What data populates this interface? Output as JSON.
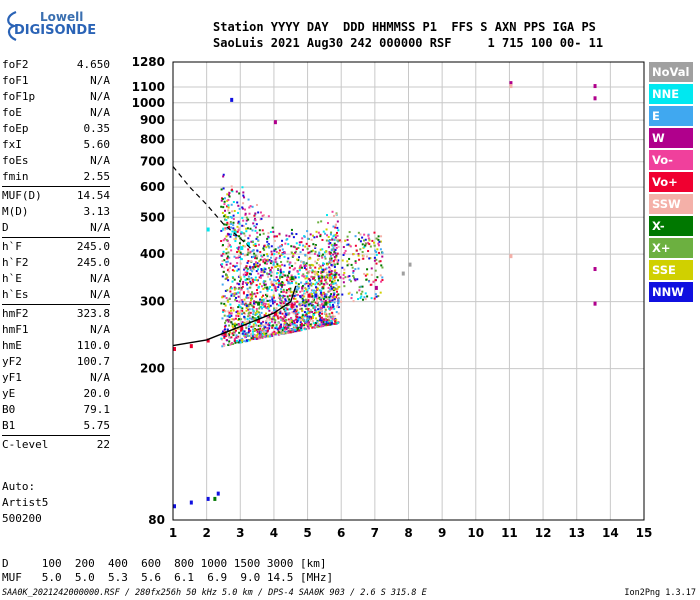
{
  "logo": {
    "line1": "Lowell",
    "line2": "DIGISONDE"
  },
  "header": {
    "line1": "Station YYYY DAY  DDD HHMMSS P1  FFS S AXN PPS IGA PS",
    "line2": "SaoLuis 2021 Aug30 242 000000 RSF     1 715 100 00- 11"
  },
  "params": [
    {
      "k": "foF2",
      "v": "4.650"
    },
    {
      "k": "foF1",
      "v": "N/A"
    },
    {
      "k": "foF1p",
      "v": "N/A"
    },
    {
      "k": "foE",
      "v": "N/A"
    },
    {
      "k": "foEp",
      "v": "0.35"
    },
    {
      "k": "fxI",
      "v": "5.60"
    },
    {
      "k": "foEs",
      "v": "N/A"
    },
    {
      "k": "fmin",
      "v": "2.55"
    },
    {
      "k": "MUF(D)",
      "v": "14.54",
      "sep": true
    },
    {
      "k": "M(D)",
      "v": "3.13"
    },
    {
      "k": "D",
      "v": "N/A"
    },
    {
      "k": "h`F",
      "v": "245.0",
      "sep": true
    },
    {
      "k": "h`F2",
      "v": "245.0"
    },
    {
      "k": "h`E",
      "v": "N/A"
    },
    {
      "k": "h`Es",
      "v": "N/A"
    },
    {
      "k": "hmF2",
      "v": "323.8",
      "sep": true
    },
    {
      "k": "hmF1",
      "v": "N/A"
    },
    {
      "k": "hmE",
      "v": "110.0"
    },
    {
      "k": "yF2",
      "v": "100.7"
    },
    {
      "k": "yF1",
      "v": "N/A"
    },
    {
      "k": "yE",
      "v": "20.0"
    },
    {
      "k": "B0",
      "v": "79.1"
    },
    {
      "k": "B1",
      "v": "5.75"
    },
    {
      "k": "C-level",
      "v": "22",
      "sep": true
    }
  ],
  "auto": {
    "l1": "Auto:",
    "l2": "Artist5",
    "l3": "500200"
  },
  "legend": [
    {
      "label": "NoVal",
      "color": "#a0a0a0"
    },
    {
      "label": "NNE",
      "color": "#00e8f0"
    },
    {
      "label": "E",
      "color": "#40a8f0"
    },
    {
      "label": "W",
      "color": "#b0008c"
    },
    {
      "label": "Vo-",
      "color": "#f0409c"
    },
    {
      "label": "Vo+",
      "color": "#f00030"
    },
    {
      "label": "SSW",
      "color": "#f4b0a8"
    },
    {
      "label": "X-",
      "color": "#007800"
    },
    {
      "label": "X+",
      "color": "#6cb040"
    },
    {
      "label": "SSE",
      "color": "#d0d000"
    },
    {
      "label": "NNW",
      "color": "#1010e0"
    }
  ],
  "footer": {
    "d_line": "D     100  200  400  600  800 1000 1500 3000 [km]",
    "muf_line": "MUF   5.0  5.0  5.3  5.6  6.1  6.9  9.0 14.5 [MHz]",
    "file_line": "SAA0K_2021242000000.RSF / 280fx256h 50 kHz 5.0 km / DPS-4 SAA0K 903 / 2.6 S 315.8 E",
    "version": "Ion2Png 1.3.17"
  },
  "chart_data": {
    "type": "scatter",
    "title": "",
    "xlabel": "",
    "ylabel": "",
    "xlim": [
      1,
      15
    ],
    "ylim": [
      80,
      1280
    ],
    "y_scale": "log",
    "x_ticks": [
      "1",
      "2",
      "3",
      "4",
      "5",
      "6",
      "7",
      "8",
      "9",
      "10",
      "11",
      "12",
      "13",
      "14",
      "15"
    ],
    "y_ticks": [
      80,
      200,
      300,
      400,
      500,
      600,
      700,
      800,
      900,
      1000,
      1100,
      1280
    ],
    "grid": true,
    "series": [
      {
        "color": "#f00030",
        "points": [
          [
            1.0,
            228
          ],
          [
            1.5,
            232
          ],
          [
            2.0,
            240
          ],
          [
            2.5,
            250
          ],
          [
            3.0,
            258
          ],
          [
            3.5,
            270
          ],
          [
            4.0,
            282
          ],
          [
            4.5,
            296
          ],
          [
            5.0,
            315
          ]
        ]
      },
      {
        "color": "#1010e0",
        "points": [
          [
            1.0,
            88
          ],
          [
            1.5,
            90
          ],
          [
            2.0,
            92
          ],
          [
            2.3,
            95
          ],
          [
            2.7,
            1030
          ],
          [
            5.2,
            315
          ]
        ]
      },
      {
        "color": "#b0008c",
        "points": [
          [
            4.0,
            900
          ],
          [
            11.0,
            1140
          ],
          [
            13.5,
            1120
          ],
          [
            13.5,
            1040
          ],
          [
            13.5,
            370
          ],
          [
            13.5,
            300
          ],
          [
            7.0,
            330
          ]
        ]
      },
      {
        "color": "#00e8f0",
        "points": [
          [
            2.0,
            470
          ],
          [
            3.0,
            420
          ],
          [
            3.2,
            430
          ],
          [
            2.8,
            460
          ]
        ]
      },
      {
        "color": "#007800",
        "points": [
          [
            2.2,
            92
          ],
          [
            3.5,
            300
          ],
          [
            4.5,
            350
          ],
          [
            5.5,
            300
          ]
        ]
      },
      {
        "color": "#f4b0a8",
        "points": [
          [
            11.0,
            1120
          ],
          [
            11.0,
            400
          ]
        ]
      },
      {
        "color": "#a0a0a0",
        "points": [
          [
            8.0,
            380
          ],
          [
            7.8,
            360
          ]
        ]
      }
    ],
    "virtual_height_curve": {
      "points": [
        [
          1.0,
          680
        ],
        [
          1.5,
          600
        ],
        [
          2.0,
          540
        ],
        [
          2.5,
          480
        ],
        [
          3.0,
          440
        ],
        [
          3.3,
          415
        ]
      ]
    },
    "trace_curve": {
      "points": [
        [
          1.0,
          230
        ],
        [
          2.0,
          238
        ],
        [
          3.0,
          258
        ],
        [
          4.0,
          280
        ],
        [
          4.5,
          300
        ],
        [
          4.65,
          330
        ]
      ]
    }
  }
}
